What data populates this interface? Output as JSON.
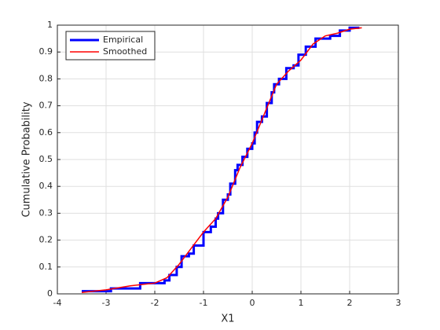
{
  "chart_data": {
    "type": "line",
    "xlabel": "X1",
    "ylabel": "Cumulative Probability",
    "xlim": [
      -4,
      3
    ],
    "xticks": [
      -4,
      -3,
      -2,
      -1,
      0,
      1,
      2,
      3
    ],
    "ylim": [
      0,
      1
    ],
    "yticks": [
      0,
      0.1,
      0.2,
      0.3,
      0.4,
      0.5,
      0.6,
      0.7,
      0.8,
      0.9,
      1
    ],
    "grid": true,
    "legend": "upper left",
    "series": [
      {
        "name": "Empirical",
        "color": "#0000ff",
        "drawstyle": "steps-post",
        "x": [
          -3.5,
          -2.9,
          -2.3,
          -1.8,
          -1.7,
          -1.55,
          -1.45,
          -1.3,
          -1.2,
          -1.0,
          -0.85,
          -0.75,
          -0.7,
          -0.6,
          -0.5,
          -0.45,
          -0.35,
          -0.3,
          -0.2,
          -0.1,
          0.0,
          0.05,
          0.1,
          0.2,
          0.3,
          0.4,
          0.45,
          0.55,
          0.7,
          0.85,
          0.95,
          1.1,
          1.3,
          1.6,
          1.8,
          2.0,
          2.2
        ],
        "values": [
          0.01,
          0.02,
          0.04,
          0.05,
          0.07,
          0.1,
          0.14,
          0.15,
          0.18,
          0.23,
          0.25,
          0.28,
          0.3,
          0.35,
          0.37,
          0.41,
          0.46,
          0.48,
          0.51,
          0.54,
          0.56,
          0.6,
          0.64,
          0.66,
          0.71,
          0.75,
          0.78,
          0.8,
          0.84,
          0.85,
          0.89,
          0.92,
          0.95,
          0.96,
          0.98,
          0.99,
          0.99
        ]
      },
      {
        "name": "Smoothed",
        "color": "#ff0000",
        "x": [
          -3.5,
          -3,
          -2.5,
          -2,
          -1.75,
          -1.5,
          -1.25,
          -1,
          -0.75,
          -0.5,
          -0.25,
          0,
          0.25,
          0.5,
          0.75,
          1,
          1.25,
          1.5,
          1.75,
          2,
          2.25
        ],
        "values": [
          0.005,
          0.015,
          0.03,
          0.04,
          0.06,
          0.11,
          0.17,
          0.23,
          0.28,
          0.36,
          0.47,
          0.56,
          0.67,
          0.78,
          0.83,
          0.87,
          0.93,
          0.96,
          0.97,
          0.985,
          0.99
        ]
      }
    ]
  }
}
